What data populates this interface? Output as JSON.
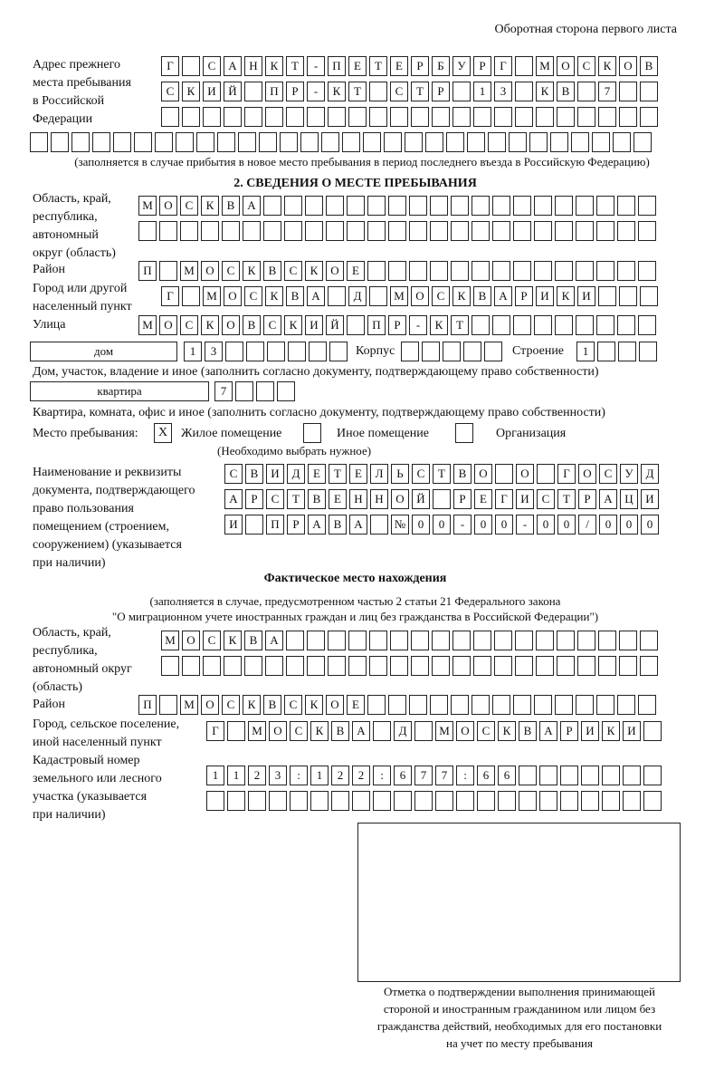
{
  "header": "Оборотная сторона первого листа",
  "prev_address": {
    "label": [
      "Адрес прежнего",
      "места пребывания",
      "в Российской",
      "Федерации"
    ],
    "rows": [
      [
        "Г",
        "",
        "С",
        "А",
        "Н",
        "К",
        "Т",
        "-",
        "П",
        "Е",
        "Т",
        "Е",
        "Р",
        "Б",
        "У",
        "Р",
        "Г",
        "",
        "М",
        "О",
        "С",
        "К",
        "О",
        "В"
      ],
      [
        "С",
        "К",
        "И",
        "Й",
        "",
        "П",
        "Р",
        "-",
        "К",
        "Т",
        "",
        "С",
        "Т",
        "Р",
        "",
        "1",
        "3",
        "",
        "К",
        "В",
        "",
        "7",
        "",
        ""
      ],
      [
        "",
        "",
        "",
        "",
        "",
        "",
        "",
        "",
        "",
        "",
        "",
        "",
        "",
        "",
        "",
        "",
        "",
        "",
        "",
        "",
        "",
        "",
        "",
        ""
      ],
      [
        "",
        "",
        "",
        "",
        "",
        "",
        "",
        "",
        "",
        "",
        "",
        "",
        "",
        "",
        "",
        "",
        "",
        "",
        "",
        "",
        "",
        "",
        "",
        "",
        "",
        "",
        "",
        "",
        "",
        ""
      ]
    ],
    "note": "(заполняется в случае прибытия в новое место пребывания в период последнего въезда в Российскую Федерацию)"
  },
  "section2": {
    "title": "2. СВЕДЕНИЯ О МЕСТЕ ПРЕБЫВАНИЯ",
    "region_label": [
      "Область, край,",
      "республика,",
      "автономный",
      "округ (область)"
    ],
    "region_rows": [
      [
        "М",
        "О",
        "С",
        "К",
        "В",
        "А",
        "",
        "",
        "",
        "",
        "",
        "",
        "",
        "",
        "",
        "",
        "",
        "",
        "",
        "",
        "",
        "",
        "",
        "",
        ""
      ],
      [
        "",
        "",
        "",
        "",
        "",
        "",
        "",
        "",
        "",
        "",
        "",
        "",
        "",
        "",
        "",
        "",
        "",
        "",
        "",
        "",
        "",
        "",
        "",
        "",
        ""
      ]
    ],
    "district_label": "Район",
    "district_row": [
      "П",
      "",
      "М",
      "О",
      "С",
      "К",
      "В",
      "С",
      "К",
      "О",
      "Е",
      "",
      "",
      "",
      "",
      "",
      "",
      "",
      "",
      "",
      "",
      "",
      "",
      "",
      ""
    ],
    "city_label": [
      "Город или другой",
      "населенный пункт"
    ],
    "city_row": [
      "Г",
      "",
      "М",
      "О",
      "С",
      "К",
      "В",
      "А",
      "",
      "Д",
      "",
      "М",
      "О",
      "С",
      "К",
      "В",
      "А",
      "Р",
      "И",
      "К",
      "И",
      "",
      "",
      ""
    ],
    "street_label": "Улица",
    "street_row": [
      "М",
      "О",
      "С",
      "К",
      "О",
      "В",
      "С",
      "К",
      "И",
      "Й",
      "",
      "П",
      "Р",
      "-",
      "К",
      "Т",
      "",
      "",
      "",
      "",
      "",
      "",
      "",
      "",
      ""
    ],
    "house_type": "дом",
    "house_cells": [
      "1",
      "3",
      "",
      "",
      "",
      "",
      "",
      ""
    ],
    "korpus_label": "Корпус",
    "korpus_cells": [
      "",
      "",
      "",
      "",
      ""
    ],
    "building_label": "Строение",
    "building_cells": [
      "1",
      "",
      "",
      ""
    ],
    "house_note": "Дом, участок, владение и иное (заполнить согласно документу, подтверждающему право собственности)",
    "flat_type": "квартира",
    "flat_cells": [
      "7",
      "",
      "",
      ""
    ],
    "flat_note": "Квартира, комната, офис и иное (заполнить согласно документу, подтверждающему право собственности)",
    "stay_label": "Место пребывания:",
    "stay_options": [
      {
        "mark": "Х",
        "label": "Жилое помещение"
      },
      {
        "mark": "",
        "label": "Иное помещение"
      },
      {
        "mark": "",
        "label": "Организация"
      }
    ],
    "stay_hint": "(Необходимо выбрать нужное)",
    "doc_label": [
      "Наименование и реквизиты",
      "документа, подтверждающего",
      "право пользования",
      "помещением (строением,",
      "сооружением) (указывается",
      "при наличии)"
    ],
    "doc_rows": [
      [
        "С",
        "В",
        "И",
        "Д",
        "Е",
        "Т",
        "Е",
        "Л",
        "Ь",
        "С",
        "Т",
        "В",
        "О",
        "",
        "О",
        "",
        "Г",
        "О",
        "С",
        "У",
        "Д"
      ],
      [
        "А",
        "Р",
        "С",
        "Т",
        "В",
        "Е",
        "Н",
        "Н",
        "О",
        "Й",
        "",
        "Р",
        "Е",
        "Г",
        "И",
        "С",
        "Т",
        "Р",
        "А",
        "Ц",
        "И"
      ],
      [
        "И",
        "",
        "П",
        "Р",
        "А",
        "В",
        "А",
        "",
        "№",
        "0",
        "0",
        "-",
        "0",
        "0",
        "-",
        "0",
        "0",
        "/",
        "0",
        "0",
        "0"
      ]
    ]
  },
  "actual": {
    "title": "Фактическое место нахождения",
    "subtitle": [
      "(заполняется в случае, предусмотренном частью 2 статьи 21 Федерального закона",
      "\"О миграционном учете иностранных граждан и лиц без гражданства в Российской Федерации\")"
    ],
    "region_label": [
      "Область, край,",
      "республика,",
      "автономный округ",
      "(область)"
    ],
    "region_rows": [
      [
        "М",
        "О",
        "С",
        "К",
        "В",
        "А",
        "",
        "",
        "",
        "",
        "",
        "",
        "",
        "",
        "",
        "",
        "",
        "",
        "",
        "",
        "",
        "",
        "",
        ""
      ],
      [
        "",
        "",
        "",
        "",
        "",
        "",
        "",
        "",
        "",
        "",
        "",
        "",
        "",
        "",
        "",
        "",
        "",
        "",
        "",
        "",
        "",
        "",
        "",
        ""
      ]
    ],
    "district_label": "Район",
    "district_row": [
      "П",
      "",
      "М",
      "О",
      "С",
      "К",
      "В",
      "С",
      "К",
      "О",
      "Е",
      "",
      "",
      "",
      "",
      "",
      "",
      "",
      "",
      "",
      "",
      "",
      "",
      "",
      ""
    ],
    "city_label": [
      "Город, сельское поселение,",
      "иной населенный пункт"
    ],
    "city_row": [
      "Г",
      "",
      "М",
      "О",
      "С",
      "К",
      "В",
      "А",
      "",
      "Д",
      "",
      "М",
      "О",
      "С",
      "К",
      "В",
      "А",
      "Р",
      "И",
      "К",
      "И",
      ""
    ],
    "cadastre_label": [
      "Кадастровый номер",
      "земельного или лесного",
      "участка (указывается",
      "при наличии)"
    ],
    "cadastre_rows": [
      [
        "1",
        "1",
        "2",
        "3",
        ":",
        "1",
        "2",
        "2",
        ":",
        "6",
        "7",
        "7",
        ":",
        "6",
        "6",
        "",
        "",
        "",
        "",
        "",
        "",
        ""
      ],
      [
        "",
        "",
        "",
        "",
        "",
        "",
        "",
        "",
        "",
        "",
        "",
        "",
        "",
        "",
        "",
        "",
        "",
        "",
        "",
        "",
        "",
        ""
      ]
    ]
  },
  "stamp_caption": [
    "Отметка о подтверждении выполнения принимающей",
    "стороной и иностранным гражданином или лицом без",
    "гражданства действий, необходимых для его постановки",
    "на учет по месту пребывания"
  ]
}
